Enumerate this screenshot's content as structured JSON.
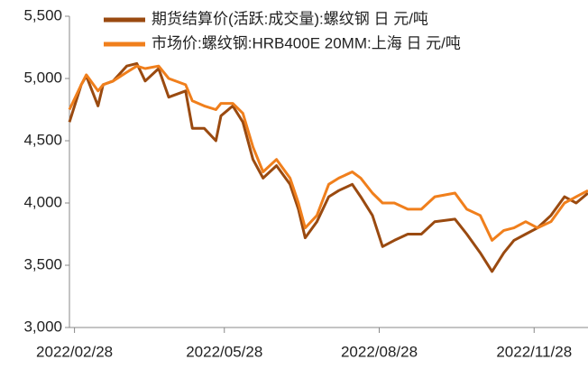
{
  "chart_data": {
    "type": "line",
    "x": [
      "2022/02/25",
      "2022/03/04",
      "2022/03/07",
      "2022/03/14",
      "2022/03/17",
      "2022/03/23",
      "2022/03/31",
      "2022/04/06",
      "2022/04/11",
      "2022/04/19",
      "2022/04/25",
      "2022/05/05",
      "2022/05/09",
      "2022/05/16",
      "2022/05/23",
      "2022/05/26",
      "2022/06/02",
      "2022/06/08",
      "2022/06/14",
      "2022/06/20",
      "2022/06/28",
      "2022/07/06",
      "2022/07/11",
      "2022/07/15",
      "2022/07/22",
      "2022/07/29",
      "2022/08/04",
      "2022/08/12",
      "2022/08/17",
      "2022/08/24",
      "2022/08/30",
      "2022/09/06",
      "2022/09/14",
      "2022/09/22",
      "2022/09/30",
      "2022/10/12",
      "2022/10/19",
      "2022/10/27",
      "2022/11/03",
      "2022/11/10",
      "2022/11/16",
      "2022/11/23",
      "2022/11/30",
      "2022/12/08",
      "2022/12/16",
      "2022/12/23",
      "2022/12/30"
    ],
    "series": [
      {
        "name": "期货结算价(活跃:成交量):螺纹钢 日 元/吨",
        "color": "#9a4a10",
        "values": [
          4650,
          4950,
          5020,
          4780,
          4950,
          4980,
          5100,
          5120,
          4980,
          5080,
          4850,
          4900,
          4600,
          4600,
          4500,
          4700,
          4780,
          4650,
          4350,
          4200,
          4300,
          4150,
          3950,
          3720,
          3850,
          4050,
          4100,
          4150,
          4050,
          3900,
          3650,
          3700,
          3750,
          3750,
          3850,
          3870,
          3750,
          3600,
          3450,
          3600,
          3700,
          3750,
          3800,
          3900,
          4050,
          4000,
          4080
        ]
      },
      {
        "name": "市场价:螺纹钢:HRB400E 20MM:上海 日 元/吨",
        "color": "#f07f1c",
        "values": [
          4750,
          4950,
          5030,
          4900,
          4950,
          4980,
          5050,
          5100,
          5080,
          5100,
          5000,
          4950,
          4820,
          4780,
          4750,
          4800,
          4800,
          4720,
          4450,
          4250,
          4350,
          4200,
          4000,
          3800,
          3900,
          4150,
          4200,
          4250,
          4200,
          4080,
          4000,
          4000,
          3950,
          3950,
          4050,
          4080,
          3950,
          3900,
          3700,
          3780,
          3800,
          3850,
          3800,
          3850,
          4000,
          4050,
          4100
        ]
      }
    ],
    "xlim": [
      "2022/02/25",
      "2022/12/30"
    ],
    "xticks": [
      "2022/02/28",
      "2022/05/28",
      "2022/08/28",
      "2022/11/28"
    ],
    "ylim": [
      3000,
      5500
    ],
    "yticks": [
      {
        "value": 3000,
        "label": "3,000"
      },
      {
        "value": 3500,
        "label": "3,500"
      },
      {
        "value": 4000,
        "label": "4,000"
      },
      {
        "value": 4500,
        "label": "4,500"
      },
      {
        "value": 5000,
        "label": "5,000"
      },
      {
        "value": 5500,
        "label": "5,500"
      }
    ],
    "grid": false,
    "legend": "top-left"
  }
}
